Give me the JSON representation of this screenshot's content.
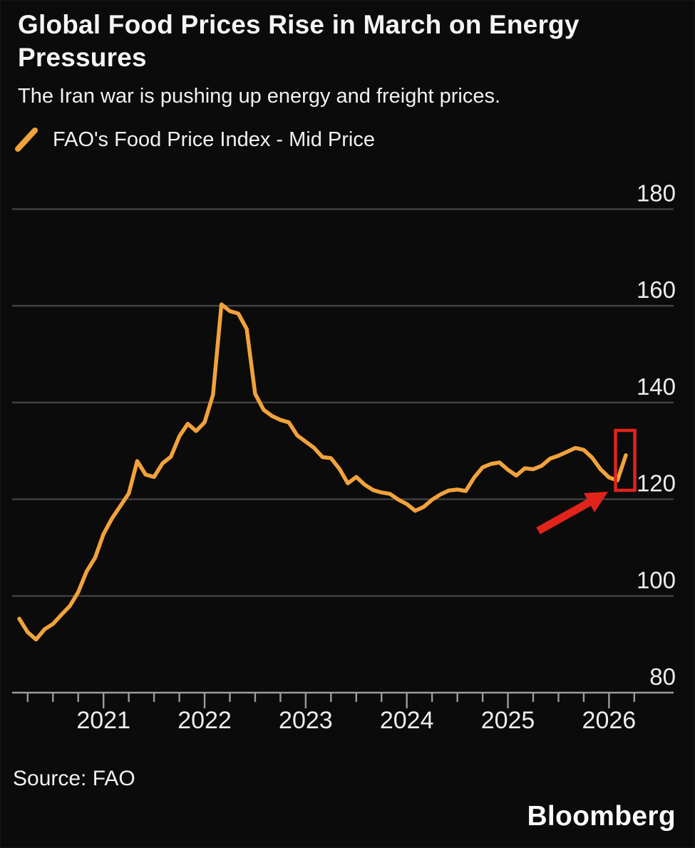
{
  "card": {
    "title": "Global Food Prices Rise in March on Energy Pressures",
    "subtitle": "The Iran war is pushing up energy and freight prices.",
    "source_label": "Source: FAO",
    "brand": "Bloomberg"
  },
  "legend": {
    "swatch_icon": "orange-slash-icon",
    "label": "FAO's Food Price Index - Mid Price"
  },
  "colors": {
    "line": "#F2A23C",
    "annotation_red": "#E0241C",
    "gridline": "#424242",
    "axis": "#9B9B9B",
    "tick_label": "#EDEDED",
    "background": "#0B0B0B"
  },
  "chart_data": {
    "type": "line",
    "title": "Global Food Prices Rise in March on Energy Pressures",
    "subtitle": "The Iran war is pushing up energy and freight prices.",
    "legend_entries": [
      "FAO's Food Price Index - Mid Price"
    ],
    "legend_position": "top-left",
    "grid": "horizontal-only",
    "xlabel": "",
    "ylabel": "",
    "ylim": [
      80,
      185
    ],
    "y_ticks": [
      180,
      160,
      140,
      120,
      100,
      80
    ],
    "x_tick_labels": [
      "2021",
      "2022",
      "2023",
      "2024",
      "2025",
      "2026"
    ],
    "x": [
      "2020-03",
      "2020-04",
      "2020-05",
      "2020-06",
      "2020-07",
      "2020-08",
      "2020-09",
      "2020-10",
      "2020-11",
      "2020-12",
      "2021-01",
      "2021-02",
      "2021-03",
      "2021-04",
      "2021-05",
      "2021-06",
      "2021-07",
      "2021-08",
      "2021-09",
      "2021-10",
      "2021-11",
      "2021-12",
      "2022-01",
      "2022-02",
      "2022-03",
      "2022-04",
      "2022-05",
      "2022-06",
      "2022-07",
      "2022-08",
      "2022-09",
      "2022-10",
      "2022-11",
      "2022-12",
      "2023-01",
      "2023-02",
      "2023-03",
      "2023-04",
      "2023-05",
      "2023-06",
      "2023-07",
      "2023-08",
      "2023-09",
      "2023-10",
      "2023-11",
      "2023-12",
      "2024-01",
      "2024-02",
      "2024-03",
      "2024-04",
      "2024-05",
      "2024-06",
      "2024-07",
      "2024-08",
      "2024-09",
      "2024-10",
      "2024-11",
      "2024-12",
      "2025-01",
      "2025-02",
      "2025-03",
      "2025-04",
      "2025-05",
      "2025-06",
      "2025-07",
      "2025-08",
      "2025-09",
      "2025-10",
      "2025-11",
      "2025-12",
      "2026-01",
      "2026-02",
      "2026-03"
    ],
    "series": [
      {
        "name": "FAO's Food Price Index - Mid Price",
        "color": "#F2A23C",
        "values": [
          95.3,
          92.5,
          91.0,
          93.1,
          94.2,
          96.1,
          97.9,
          100.8,
          105.1,
          107.9,
          112.8,
          116.0,
          118.6,
          121.2,
          127.9,
          125.1,
          124.6,
          127.4,
          128.8,
          133.0,
          135.6,
          134.1,
          135.9,
          141.6,
          160.3,
          158.9,
          158.4,
          155.2,
          141.8,
          138.5,
          137.2,
          136.4,
          135.9,
          133.2,
          131.9,
          130.6,
          128.7,
          128.5,
          126.3,
          123.3,
          124.6,
          123.0,
          121.9,
          121.4,
          121.1,
          119.9,
          119.0,
          117.6,
          118.4,
          119.9,
          121.0,
          121.8,
          122.0,
          121.7,
          124.5,
          126.6,
          127.3,
          127.6,
          126.1,
          124.9,
          126.4,
          126.2,
          126.9,
          128.4,
          129.0,
          129.8,
          130.6,
          130.2,
          128.6,
          126.2,
          124.5,
          123.9,
          129.1
        ]
      }
    ],
    "annotations": {
      "highlight_box": {
        "shape": "rectangle",
        "color": "#E0241C",
        "month": "2026-03",
        "meaning": "highlights the March 2026 uptick"
      },
      "arrow": {
        "shape": "arrow",
        "color": "#E0241C",
        "points_to": "2026-03 data point",
        "direction": "up-right"
      }
    }
  }
}
